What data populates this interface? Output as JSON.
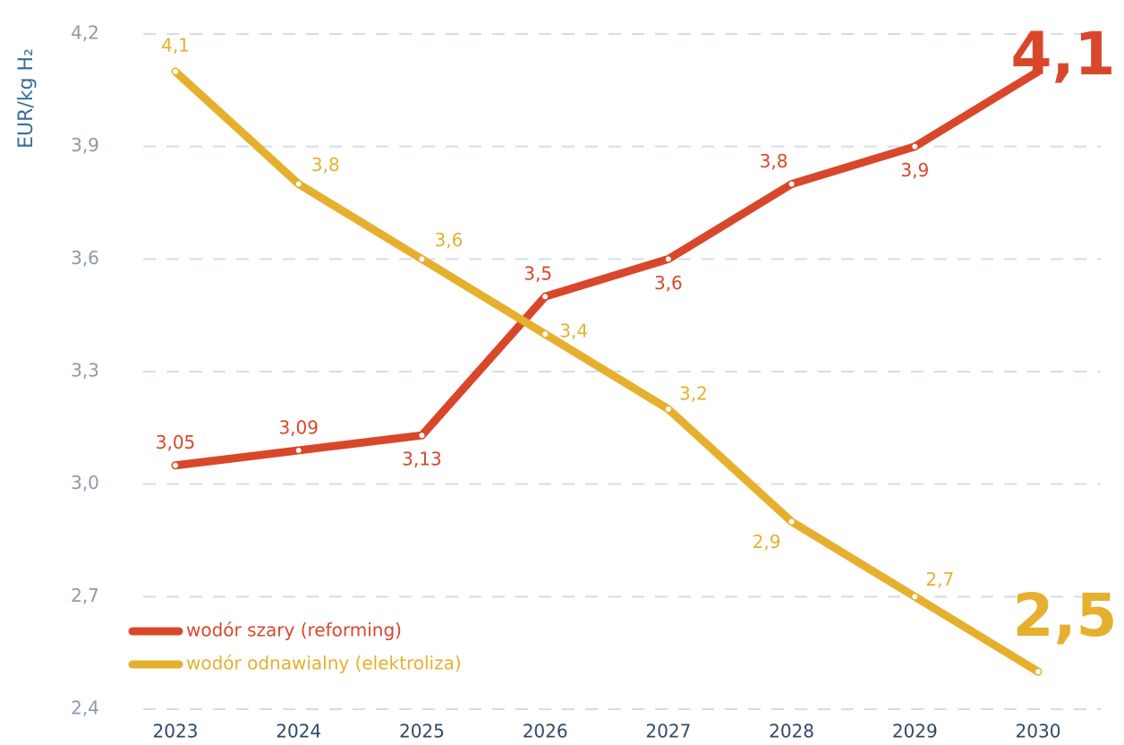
{
  "chart_data": {
    "type": "line",
    "y_label": "EUR/kg H₂",
    "categories": [
      "2023",
      "2024",
      "2025",
      "2026",
      "2027",
      "2028",
      "2029",
      "2030"
    ],
    "series": [
      {
        "name": "wodór szary (reforming)",
        "color": "#d9472b",
        "values": [
          3.05,
          3.09,
          3.13,
          3.5,
          3.6,
          3.8,
          3.9,
          4.1
        ],
        "value_labels": [
          "3,05",
          "3,09",
          "3,13",
          "3,5",
          "3,6",
          "3,8",
          "3,9",
          "4,1"
        ]
      },
      {
        "name": "wodór odnawialny (elektroliza)",
        "color": "#e6b02e",
        "values": [
          4.1,
          3.8,
          3.6,
          3.4,
          3.2,
          2.9,
          2.7,
          2.5
        ],
        "value_labels": [
          "4,1",
          "3,8",
          "3,6",
          "3,4",
          "3,2",
          "2,9",
          "2,7",
          "2,5"
        ]
      }
    ],
    "ylim": [
      2.4,
      4.2
    ],
    "yticks": [
      {
        "value": 2.4,
        "label": "2,4"
      },
      {
        "value": 2.7,
        "label": "2,7"
      },
      {
        "value": 3.0,
        "label": "3,0"
      },
      {
        "value": 3.3,
        "label": "3,3"
      },
      {
        "value": 3.6,
        "label": "3,6"
      },
      {
        "value": 3.9,
        "label": "3,9"
      },
      {
        "value": 4.2,
        "label": "4,2"
      }
    ],
    "grid": true,
    "legend": "lower left"
  }
}
